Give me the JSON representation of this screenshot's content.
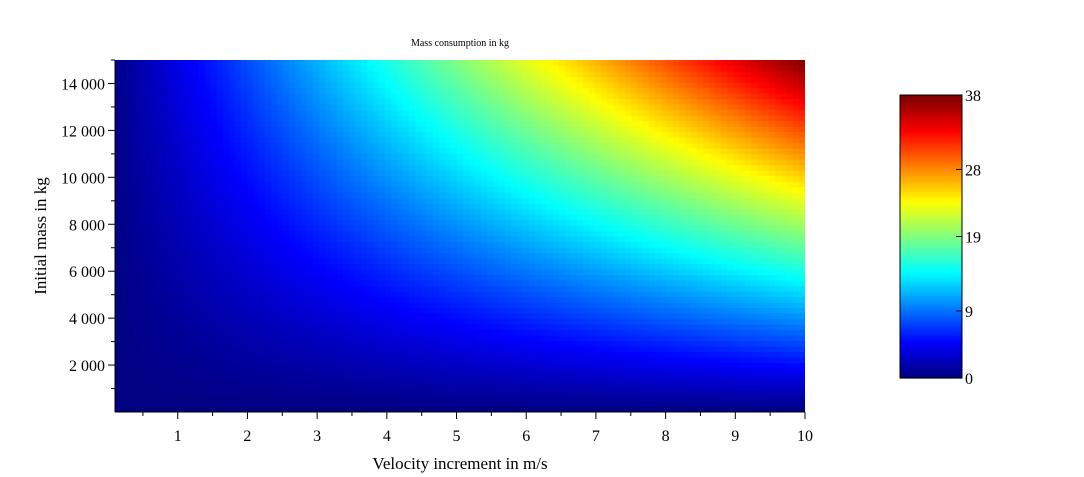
{
  "chart_data": {
    "type": "heatmap",
    "title": "Mass consumption in kg",
    "xlabel": "Velocity increment in m/s",
    "ylabel": "Initial mass in kg",
    "xlim": [
      0.1,
      10
    ],
    "ylim": [
      0,
      15000
    ],
    "x_ticks": [
      1,
      2,
      3,
      4,
      5,
      6,
      7,
      8,
      9,
      10
    ],
    "x_tick_labels": [
      "1",
      "2",
      "3",
      "4",
      "5",
      "6",
      "7",
      "8",
      "9",
      "10"
    ],
    "y_ticks": [
      2000,
      4000,
      6000,
      8000,
      10000,
      12000,
      14000
    ],
    "y_tick_labels": [
      "2 000",
      "4 000",
      "6 000",
      "8 000",
      "10 000",
      "12 000",
      "14 000"
    ],
    "colorbar": {
      "min": 0,
      "max": 38,
      "ticks": [
        0,
        9,
        19,
        28,
        38
      ],
      "tick_labels": [
        "0",
        "9",
        "19",
        "28",
        "38"
      ],
      "colormap": "jet"
    },
    "value_model": "z proportional to x*y, z(10, 15000) = 38",
    "z_max_point": {
      "x": 10,
      "y": 15000,
      "z": 38
    },
    "colors": {
      "low": "#00007f",
      "mid_low": "#0000ff",
      "mid": "#00ffff",
      "mid_high": "#ffff00",
      "high": "#ff0000",
      "max": "#7f0000"
    }
  }
}
